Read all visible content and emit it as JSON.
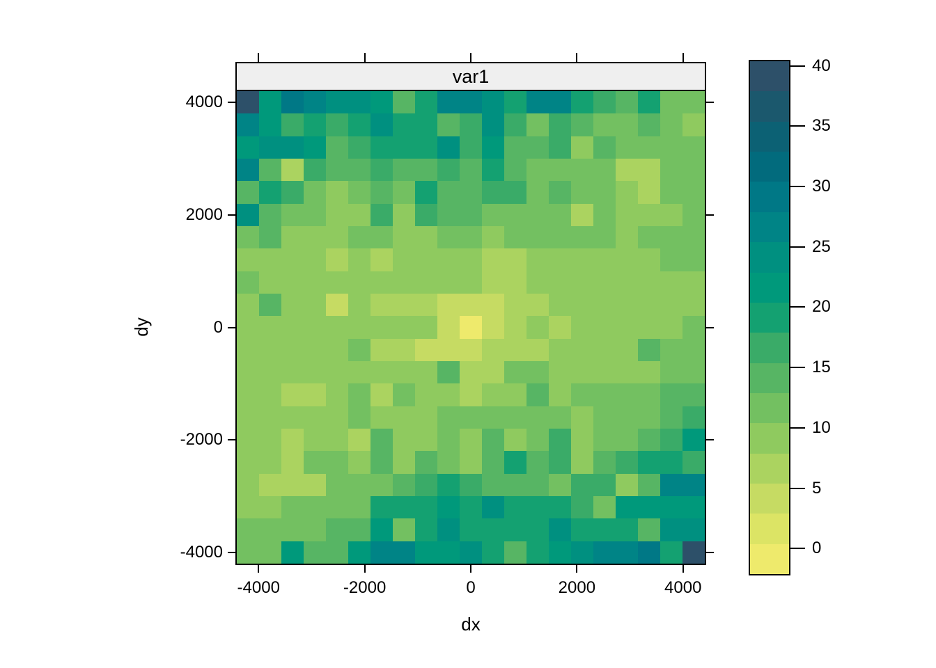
{
  "panel": {
    "title": "var1"
  },
  "axes": {
    "x": {
      "label": "dx"
    },
    "y": {
      "label": "dy"
    }
  },
  "chart_data": {
    "type": "heatmap",
    "title": "var1",
    "xlabel": "dx",
    "ylabel": "dy",
    "x_domain": [
      -4410,
      4410
    ],
    "y_domain": [
      -4200,
      4200
    ],
    "x_ticks": [
      -4000,
      -2000,
      0,
      2000,
      4000
    ],
    "y_ticks": [
      4000,
      2000,
      0,
      -2000,
      -4000
    ],
    "n_cols": 21,
    "n_rows": 21,
    "rows_order": "top-to-bottom (dy = +4000 at top row, -4000 at bottom row)",
    "values": [
      [
        40,
        22,
        28,
        27,
        25,
        25,
        21,
        14,
        19,
        26,
        26,
        24,
        20,
        27,
        27,
        20,
        16,
        15,
        20,
        11,
        11
      ],
      [
        26,
        22,
        16,
        19,
        17,
        19,
        23,
        18,
        18,
        15,
        16,
        23,
        17,
        12,
        17,
        14,
        11,
        11,
        13,
        11,
        9
      ],
      [
        22,
        23,
        23,
        22,
        13,
        16,
        18,
        18,
        19,
        24,
        16,
        22,
        15,
        15,
        16,
        9,
        13,
        11,
        11,
        11,
        11
      ],
      [
        27,
        15,
        7,
        17,
        14,
        13,
        16,
        14,
        14,
        17,
        14,
        19,
        14,
        11,
        11,
        11,
        11,
        7,
        7,
        11,
        11
      ],
      [
        15,
        18,
        17,
        11,
        9,
        11,
        14,
        11,
        19,
        15,
        14,
        16,
        16,
        11,
        14,
        11,
        11,
        9,
        7,
        11,
        11
      ],
      [
        25,
        15,
        11,
        11,
        9,
        9,
        17,
        9,
        17,
        14,
        14,
        11,
        11,
        11,
        11,
        7,
        11,
        9,
        9,
        9,
        11
      ],
      [
        11,
        14,
        9,
        9,
        9,
        11,
        11,
        9,
        8,
        11,
        11,
        9,
        11,
        11,
        11,
        11,
        11,
        9,
        11,
        11,
        12
      ],
      [
        9,
        9,
        9,
        9,
        7,
        9,
        7,
        9,
        9,
        8,
        9,
        7,
        7,
        8,
        9,
        9,
        9,
        8,
        8,
        11,
        11
      ],
      [
        11,
        8,
        8,
        9,
        9,
        9,
        9,
        8,
        9,
        9,
        8,
        7,
        7,
        9,
        8,
        9,
        9,
        9,
        9,
        9,
        9
      ],
      [
        8,
        13,
        8,
        8,
        5,
        9,
        7,
        6,
        7,
        5,
        4,
        5,
        7,
        7,
        8,
        9,
        9,
        9,
        9,
        9,
        9
      ],
      [
        9,
        9,
        9,
        8,
        9,
        9,
        9,
        8,
        8,
        4,
        0,
        4,
        6,
        9,
        7,
        9,
        9,
        9,
        9,
        9,
        11
      ],
      [
        9,
        9,
        9,
        9,
        9,
        11,
        7,
        7,
        5,
        5,
        4,
        6,
        7,
        7,
        8,
        9,
        9,
        9,
        13,
        11,
        11
      ],
      [
        9,
        9,
        9,
        9,
        9,
        9,
        9,
        8,
        8,
        13,
        7,
        7,
        11,
        11,
        9,
        9,
        9,
        9,
        9,
        11,
        12
      ],
      [
        9,
        9,
        7,
        7,
        9,
        11,
        7,
        11,
        9,
        9,
        7,
        9,
        9,
        13,
        9,
        11,
        11,
        11,
        11,
        13,
        13
      ],
      [
        9,
        9,
        9,
        9,
        9,
        11,
        9,
        9,
        9,
        11,
        12,
        12,
        11,
        11,
        11,
        9,
        11,
        11,
        11,
        14,
        16
      ],
      [
        9,
        9,
        7,
        9,
        9,
        7,
        13,
        9,
        9,
        12,
        9,
        13,
        9,
        12,
        17,
        9,
        11,
        11,
        13,
        17,
        21
      ],
      [
        9,
        9,
        7,
        11,
        11,
        9,
        13,
        8,
        13,
        11,
        9,
        13,
        18,
        13,
        17,
        9,
        14,
        17,
        18,
        18,
        16
      ],
      [
        9,
        7,
        7,
        7,
        11,
        12,
        11,
        14,
        17,
        18,
        16,
        14,
        14,
        14,
        11,
        17,
        17,
        8,
        14,
        26,
        26
      ],
      [
        9,
        9,
        11,
        12,
        12,
        11,
        18,
        18,
        18,
        22,
        18,
        24,
        19,
        19,
        18,
        17,
        11,
        22,
        22,
        22,
        22
      ],
      [
        11,
        12,
        12,
        11,
        13,
        13,
        22,
        11,
        18,
        23,
        18,
        19,
        18,
        18,
        23,
        18,
        18,
        18,
        14,
        24,
        23
      ],
      [
        11,
        11,
        22,
        14,
        15,
        22,
        26,
        26,
        21,
        22,
        23,
        20,
        13,
        19,
        22,
        23,
        26,
        27,
        28,
        20,
        40
      ]
    ],
    "color_scale": {
      "domain": [
        -2,
        40.5
      ],
      "band_size": 2.5,
      "bands_low_to_high": [
        "#eeea6c",
        "#dce465",
        "#c6db63",
        "#abd360",
        "#8fca5f",
        "#73c061",
        "#57b564",
        "#3aab68",
        "#14a171",
        "#00997b",
        "#009080",
        "#008486",
        "#007886",
        "#026b7d",
        "#0c6174",
        "#1b586d",
        "#2d5069"
      ],
      "ticks": [
        0,
        5,
        10,
        15,
        20,
        25,
        30,
        35,
        40
      ]
    },
    "legend_position": "right",
    "grid": false,
    "strip_background": "#efefef",
    "border_color": "#000000"
  }
}
